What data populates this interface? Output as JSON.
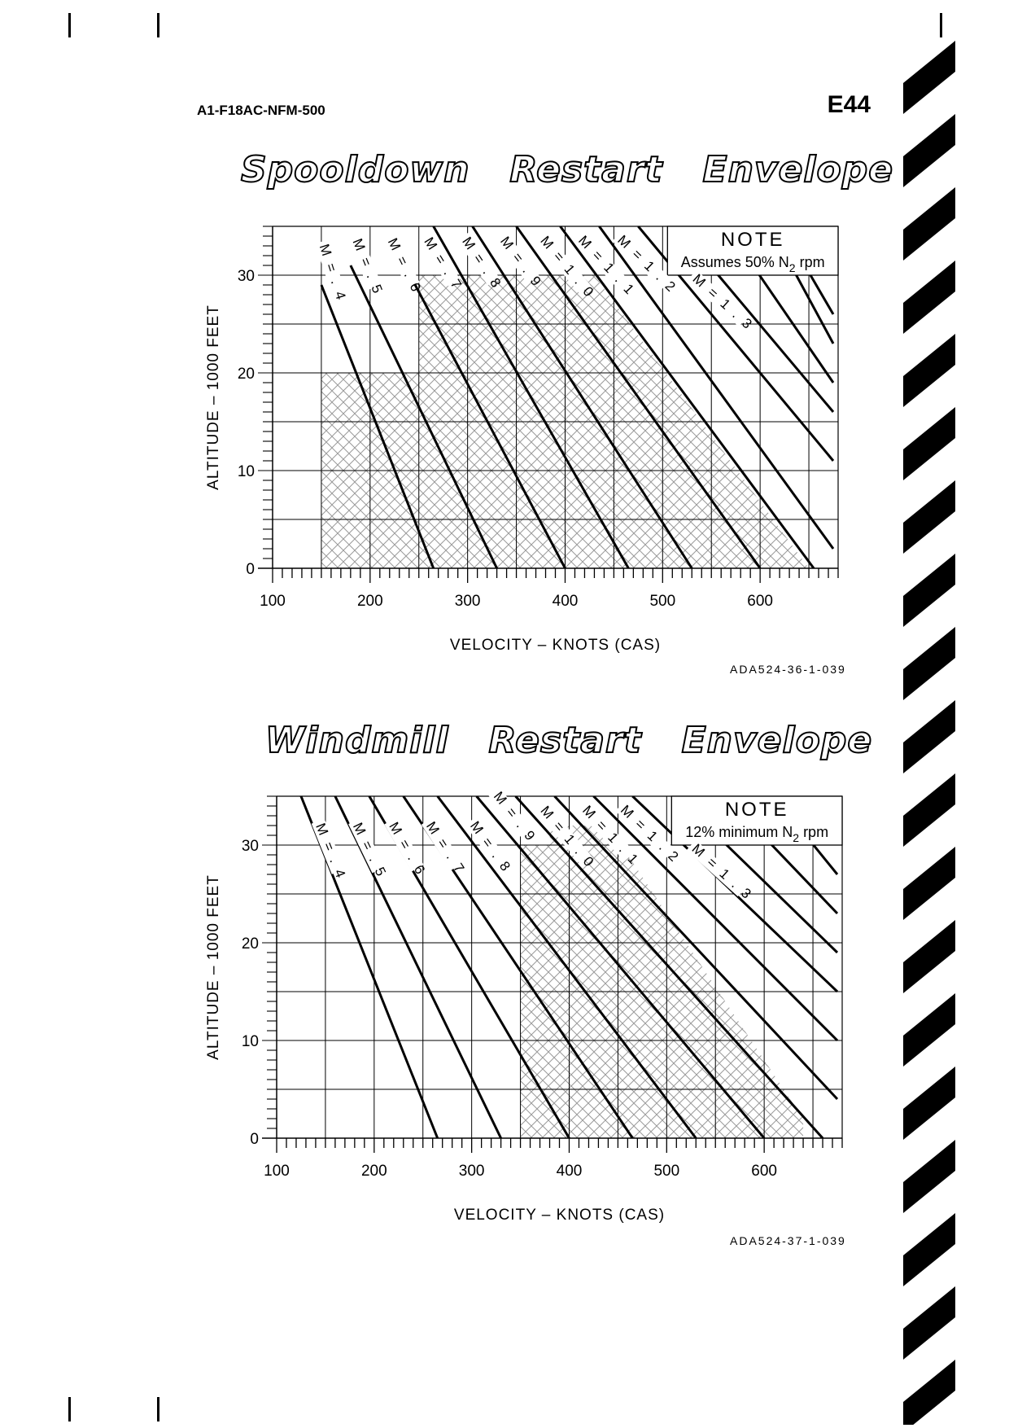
{
  "header": {
    "doc_id": "A1-F18AC-NFM-500",
    "page": "E44"
  },
  "chart_data": [
    {
      "type": "line",
      "title": "Spooldown   Restart   Envelope",
      "xlabel": "VELOCITY – KNOTS (CAS)",
      "ylabel": "ALTITUDE – 1000 FEET",
      "xlim": [
        100,
        680
      ],
      "ylim": [
        0,
        35
      ],
      "x_ticks": [
        "100",
        "200",
        "300",
        "400",
        "500",
        "600"
      ],
      "y_ticks": [
        "0",
        "10",
        "20",
        "30"
      ],
      "grid": true,
      "legend": "none",
      "note": {
        "title": "NOTE",
        "text": "Assumes 50% N",
        "sub": "2",
        "tail": " rpm"
      },
      "figure_id": "ADA524-36-1-039",
      "envelope": [
        [
          150,
          0
        ],
        [
          150,
          20
        ],
        [
          250,
          20
        ],
        [
          250,
          30
        ],
        [
          430,
          30
        ],
        [
          650,
          0
        ]
      ],
      "series": [
        {
          "name": "M = . 4",
          "x": [
            150,
            265
          ],
          "y": [
            29,
            0
          ]
        },
        {
          "name": "M = . 5",
          "x": [
            180,
            330
          ],
          "y": [
            31,
            0
          ]
        },
        {
          "name": "M = . 6",
          "x": [
            225,
            400
          ],
          "y": [
            33,
            0
          ]
        },
        {
          "name": "M = . 7",
          "x": [
            265,
            465
          ],
          "y": [
            35,
            0
          ]
        },
        {
          "name": "M = . 8",
          "x": [
            305,
            530
          ],
          "y": [
            35,
            0
          ]
        },
        {
          "name": "M = . 9",
          "x": [
            350,
            600
          ],
          "y": [
            35,
            0
          ]
        },
        {
          "name": "M = 1 . 0",
          "x": [
            395,
            655
          ],
          "y": [
            35,
            0
          ]
        },
        {
          "name": "M = 1 . 1",
          "x": [
            435,
            675
          ],
          "y": [
            35,
            2
          ]
        },
        {
          "name": "M = 1 . 2",
          "x": [
            475,
            675
          ],
          "y": [
            35,
            11
          ]
        },
        {
          "name": "M = 1 . 3",
          "x": [
            515,
            675
          ],
          "y": [
            35,
            16
          ]
        },
        {
          "name": "",
          "x": [
            565,
            675
          ],
          "y": [
            35,
            19
          ]
        },
        {
          "name": "",
          "x": [
            610,
            675
          ],
          "y": [
            35,
            23
          ]
        },
        {
          "name": "",
          "x": [
            640,
            675
          ],
          "y": [
            32,
            26
          ]
        }
      ],
      "labeled_series": [
        {
          "text": "M = . 4",
          "x": 148,
          "y": 33,
          "angle": 72
        },
        {
          "text": "M = . 5",
          "x": 182,
          "y": 33.5,
          "angle": 68
        },
        {
          "text": "M = . 6",
          "x": 218,
          "y": 33.5,
          "angle": 64
        },
        {
          "text": "M = . 7",
          "x": 255,
          "y": 33.5,
          "angle": 58
        },
        {
          "text": "M = . 8",
          "x": 294,
          "y": 33.5,
          "angle": 56
        },
        {
          "text": "M = . 9",
          "x": 333,
          "y": 33.5,
          "angle": 53
        },
        {
          "text": "M = 1 . 0",
          "x": 374,
          "y": 33.5,
          "angle": 50
        },
        {
          "text": "M = 1 . 1",
          "x": 413,
          "y": 33.5,
          "angle": 47
        },
        {
          "text": "M = 1 . 2",
          "x": 453,
          "y": 33.5,
          "angle": 44
        },
        {
          "text": "M = 1 . 3",
          "x": 530,
          "y": 29.5,
          "angle": 42
        }
      ]
    },
    {
      "type": "line",
      "title": "Windmill   Restart   Envelope",
      "xlabel": "VELOCITY – KNOTS (CAS)",
      "ylabel": "ALTITUDE – 1000 FEET",
      "xlim": [
        100,
        680
      ],
      "ylim": [
        0,
        35
      ],
      "x_ticks": [
        "100",
        "200",
        "300",
        "400",
        "500",
        "600"
      ],
      "y_ticks": [
        "0",
        "10",
        "20",
        "30"
      ],
      "grid": true,
      "legend": "none",
      "note": {
        "title": "NOTE",
        "text": "12% minimum N",
        "sub": "2",
        "tail": " rpm"
      },
      "figure_id": "ADA524-37-1-039",
      "envelope": [
        [
          350,
          0
        ],
        [
          350,
          30
        ],
        [
          380,
          30
        ],
        [
          380,
          32
        ],
        [
          440,
          32
        ],
        [
          640,
          2
        ],
        [
          640,
          0
        ]
      ],
      "series": [
        {
          "name": "M = . 4",
          "x": [
            125,
            265
          ],
          "y": [
            35,
            0
          ]
        },
        {
          "name": "M = . 5",
          "x": [
            160,
            330
          ],
          "y": [
            35,
            0
          ]
        },
        {
          "name": "M = . 6",
          "x": [
            195,
            400
          ],
          "y": [
            35,
            0
          ]
        },
        {
          "name": "M = . 7",
          "x": [
            230,
            465
          ],
          "y": [
            35,
            0
          ]
        },
        {
          "name": "M = . 8",
          "x": [
            265,
            530
          ],
          "y": [
            35,
            0
          ]
        },
        {
          "name": "M = . 9",
          "x": [
            305,
            600
          ],
          "y": [
            35,
            0
          ]
        },
        {
          "name": "M = 1 . 0",
          "x": [
            345,
            660
          ],
          "y": [
            35,
            0
          ]
        },
        {
          "name": "M = 1 . 1",
          "x": [
            385,
            675
          ],
          "y": [
            35,
            4
          ]
        },
        {
          "name": "M = 1 . 2",
          "x": [
            425,
            675
          ],
          "y": [
            35,
            10
          ]
        },
        {
          "name": "M = 1 . 3",
          "x": [
            465,
            675
          ],
          "y": [
            35,
            15
          ]
        },
        {
          "name": "",
          "x": [
            510,
            675
          ],
          "y": [
            35,
            19
          ]
        },
        {
          "name": "",
          "x": [
            560,
            675
          ],
          "y": [
            35,
            23
          ]
        },
        {
          "name": "",
          "x": [
            610,
            675
          ],
          "y": [
            35,
            27
          ]
        }
      ],
      "labeled_series": [
        {
          "text": "M = . 4",
          "x": 140,
          "y": 32,
          "angle": 68
        },
        {
          "text": "M = . 5",
          "x": 178,
          "y": 32,
          "angle": 64
        },
        {
          "text": "M = . 6",
          "x": 215,
          "y": 32,
          "angle": 60
        },
        {
          "text": "M = . 7",
          "x": 253,
          "y": 32,
          "angle": 57
        },
        {
          "text": "M = . 8",
          "x": 298,
          "y": 32,
          "angle": 54
        },
        {
          "text": "M = . 9",
          "x": 322,
          "y": 35,
          "angle": 52
        },
        {
          "text": "M = 1 . 0",
          "x": 370,
          "y": 33.5,
          "angle": 50
        },
        {
          "text": "M = 1 . 1",
          "x": 413,
          "y": 33.5,
          "angle": 47
        },
        {
          "text": "M = 1 . 2",
          "x": 452,
          "y": 33.5,
          "angle": 44
        },
        {
          "text": "M = 1 . 3",
          "x": 525,
          "y": 29.5,
          "angle": 42
        }
      ]
    }
  ]
}
